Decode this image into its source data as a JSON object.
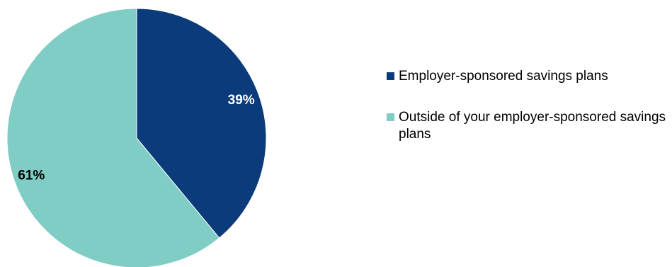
{
  "chart_data": {
    "type": "pie",
    "start_angle_deg": 0,
    "direction": "clockwise",
    "slices": [
      {
        "label": "Employer-sponsored savings plans",
        "value": 39,
        "display": "39%",
        "color": "#0b3b7a",
        "label_color": "#ffffff"
      },
      {
        "label": "Outside of your employer-sponsored savings plans",
        "value": 61,
        "display": "61%",
        "color": "#7fcdc5",
        "label_color": "#000000"
      }
    ],
    "legend_position": "right"
  },
  "legend": {
    "items": [
      {
        "label": "Employer-sponsored savings plans",
        "color": "#0b3b7a"
      },
      {
        "label": "Outside of your employer-sponsored savings plans",
        "color": "#7fcdc5"
      }
    ]
  }
}
